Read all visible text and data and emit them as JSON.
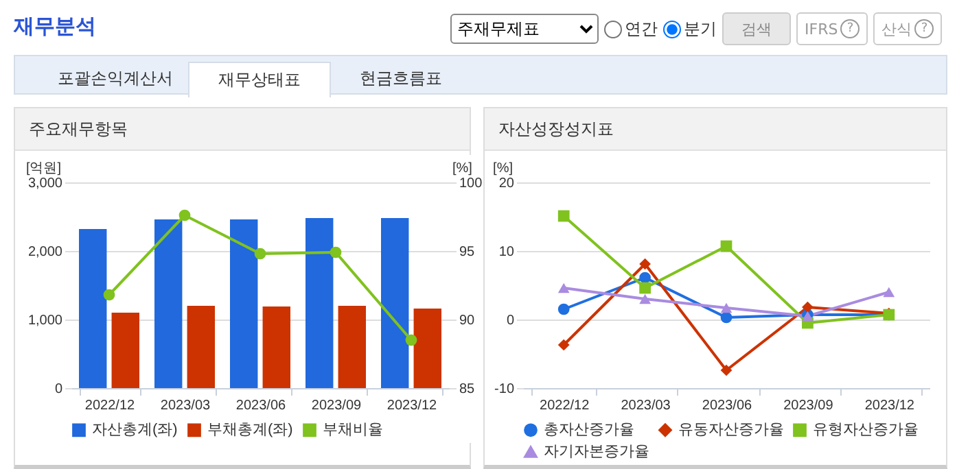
{
  "chart_data": [
    {
      "type": "other",
      "title": "재무분석",
      "annotations": [
        "주재무제표",
        "연간",
        "분기",
        "검색",
        "IFRS",
        "산식",
        "포괄손익계산서",
        "재무상태표",
        "현금흐름표",
        "?"
      ]
    },
    {
      "type": "bar",
      "title": "주요재무항목",
      "ylabel": "[억원]",
      "y2label": "[%]",
      "categories": [
        "2022/12",
        "2023/03",
        "2023/06",
        "2023/09",
        "2023/12"
      ],
      "ylim": [
        0,
        3000
      ],
      "yticks": [
        0,
        {
          "value": 1000,
          "label": "1,000"
        },
        {
          "value": 2000,
          "label": "2,000"
        },
        {
          "value": 3000,
          "label": "3,000"
        }
      ],
      "y2lim": [
        85,
        100
      ],
      "y2ticks": [
        85,
        90,
        95,
        100
      ],
      "grid": "y",
      "legend": "bottom",
      "series": [
        {
          "name": "자산총계(좌)",
          "color": "#2169dc",
          "values": [
            2320,
            2460,
            2460,
            2480,
            2480
          ]
        },
        {
          "name": "부채총계(좌)",
          "color": "#cc3300",
          "values": [
            1100,
            1200,
            1190,
            1200,
            1160
          ]
        },
        {
          "name": "부채비율",
          "type": "line",
          "axis": "y2",
          "marker": "circle",
          "color": "#80c21e",
          "values": [
            91.8,
            97.6,
            94.8,
            94.9,
            88.5
          ]
        }
      ]
    },
    {
      "type": "line",
      "title": "자산성장성지표",
      "ylabel": "[%]",
      "categories": [
        "2022/12",
        "2023/03",
        "2023/06",
        "2023/09",
        "2023/12"
      ],
      "ylim": [
        -10,
        20
      ],
      "yticks": [
        -10,
        0,
        10,
        20
      ],
      "grid": "y",
      "legend": "bottom",
      "series": [
        {
          "name": "총자산증가율",
          "marker": "circle",
          "color": "#1f6fe0",
          "values": [
            1.5,
            6.1,
            0.3,
            0.7,
            0.7
          ]
        },
        {
          "name": "유동자산증가율",
          "marker": "diamond",
          "color": "#cc3300",
          "values": [
            -3.7,
            8.1,
            -7.4,
            1.8,
            0.9
          ]
        },
        {
          "name": "유형자산증가율",
          "marker": "square",
          "color": "#80c21e",
          "values": [
            15.1,
            4.6,
            10.7,
            -0.5,
            0.7
          ]
        },
        {
          "name": "자기자본증가율",
          "marker": "triangle",
          "color": "#a98be0",
          "values": [
            4.6,
            3.0,
            1.7,
            0.5,
            4.0
          ]
        }
      ]
    }
  ]
}
